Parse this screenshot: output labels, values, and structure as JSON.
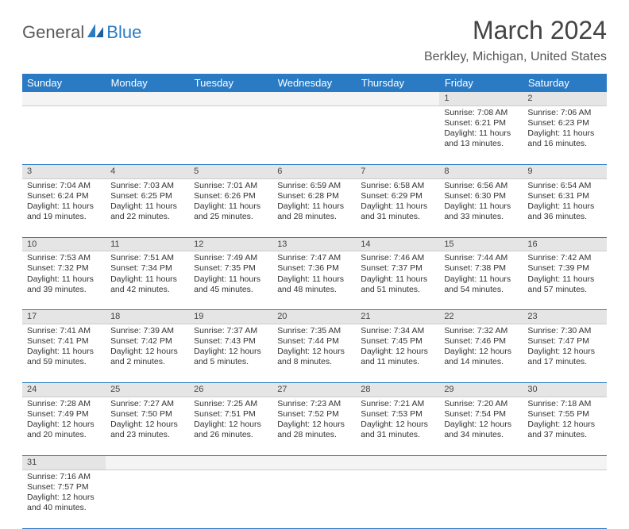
{
  "logo": {
    "part1": "General",
    "part2": "Blue"
  },
  "title": "March 2024",
  "location": "Berkley, Michigan, United States",
  "colors": {
    "header_bg": "#2a7bc4",
    "header_text": "#ffffff",
    "daynum_bg": "#e5e5e5",
    "border": "#2a7bc4",
    "page_bg": "#ffffff",
    "text": "#333333"
  },
  "day_headers": [
    "Sunday",
    "Monday",
    "Tuesday",
    "Wednesday",
    "Thursday",
    "Friday",
    "Saturday"
  ],
  "weeks": [
    [
      null,
      null,
      null,
      null,
      null,
      {
        "n": "1",
        "sr": "Sunrise: 7:08 AM",
        "ss": "Sunset: 6:21 PM",
        "d1": "Daylight: 11 hours",
        "d2": "and 13 minutes."
      },
      {
        "n": "2",
        "sr": "Sunrise: 7:06 AM",
        "ss": "Sunset: 6:23 PM",
        "d1": "Daylight: 11 hours",
        "d2": "and 16 minutes."
      }
    ],
    [
      {
        "n": "3",
        "sr": "Sunrise: 7:04 AM",
        "ss": "Sunset: 6:24 PM",
        "d1": "Daylight: 11 hours",
        "d2": "and 19 minutes."
      },
      {
        "n": "4",
        "sr": "Sunrise: 7:03 AM",
        "ss": "Sunset: 6:25 PM",
        "d1": "Daylight: 11 hours",
        "d2": "and 22 minutes."
      },
      {
        "n": "5",
        "sr": "Sunrise: 7:01 AM",
        "ss": "Sunset: 6:26 PM",
        "d1": "Daylight: 11 hours",
        "d2": "and 25 minutes."
      },
      {
        "n": "6",
        "sr": "Sunrise: 6:59 AM",
        "ss": "Sunset: 6:28 PM",
        "d1": "Daylight: 11 hours",
        "d2": "and 28 minutes."
      },
      {
        "n": "7",
        "sr": "Sunrise: 6:58 AM",
        "ss": "Sunset: 6:29 PM",
        "d1": "Daylight: 11 hours",
        "d2": "and 31 minutes."
      },
      {
        "n": "8",
        "sr": "Sunrise: 6:56 AM",
        "ss": "Sunset: 6:30 PM",
        "d1": "Daylight: 11 hours",
        "d2": "and 33 minutes."
      },
      {
        "n": "9",
        "sr": "Sunrise: 6:54 AM",
        "ss": "Sunset: 6:31 PM",
        "d1": "Daylight: 11 hours",
        "d2": "and 36 minutes."
      }
    ],
    [
      {
        "n": "10",
        "sr": "Sunrise: 7:53 AM",
        "ss": "Sunset: 7:32 PM",
        "d1": "Daylight: 11 hours",
        "d2": "and 39 minutes."
      },
      {
        "n": "11",
        "sr": "Sunrise: 7:51 AM",
        "ss": "Sunset: 7:34 PM",
        "d1": "Daylight: 11 hours",
        "d2": "and 42 minutes."
      },
      {
        "n": "12",
        "sr": "Sunrise: 7:49 AM",
        "ss": "Sunset: 7:35 PM",
        "d1": "Daylight: 11 hours",
        "d2": "and 45 minutes."
      },
      {
        "n": "13",
        "sr": "Sunrise: 7:47 AM",
        "ss": "Sunset: 7:36 PM",
        "d1": "Daylight: 11 hours",
        "d2": "and 48 minutes."
      },
      {
        "n": "14",
        "sr": "Sunrise: 7:46 AM",
        "ss": "Sunset: 7:37 PM",
        "d1": "Daylight: 11 hours",
        "d2": "and 51 minutes."
      },
      {
        "n": "15",
        "sr": "Sunrise: 7:44 AM",
        "ss": "Sunset: 7:38 PM",
        "d1": "Daylight: 11 hours",
        "d2": "and 54 minutes."
      },
      {
        "n": "16",
        "sr": "Sunrise: 7:42 AM",
        "ss": "Sunset: 7:39 PM",
        "d1": "Daylight: 11 hours",
        "d2": "and 57 minutes."
      }
    ],
    [
      {
        "n": "17",
        "sr": "Sunrise: 7:41 AM",
        "ss": "Sunset: 7:41 PM",
        "d1": "Daylight: 11 hours",
        "d2": "and 59 minutes."
      },
      {
        "n": "18",
        "sr": "Sunrise: 7:39 AM",
        "ss": "Sunset: 7:42 PM",
        "d1": "Daylight: 12 hours",
        "d2": "and 2 minutes."
      },
      {
        "n": "19",
        "sr": "Sunrise: 7:37 AM",
        "ss": "Sunset: 7:43 PM",
        "d1": "Daylight: 12 hours",
        "d2": "and 5 minutes."
      },
      {
        "n": "20",
        "sr": "Sunrise: 7:35 AM",
        "ss": "Sunset: 7:44 PM",
        "d1": "Daylight: 12 hours",
        "d2": "and 8 minutes."
      },
      {
        "n": "21",
        "sr": "Sunrise: 7:34 AM",
        "ss": "Sunset: 7:45 PM",
        "d1": "Daylight: 12 hours",
        "d2": "and 11 minutes."
      },
      {
        "n": "22",
        "sr": "Sunrise: 7:32 AM",
        "ss": "Sunset: 7:46 PM",
        "d1": "Daylight: 12 hours",
        "d2": "and 14 minutes."
      },
      {
        "n": "23",
        "sr": "Sunrise: 7:30 AM",
        "ss": "Sunset: 7:47 PM",
        "d1": "Daylight: 12 hours",
        "d2": "and 17 minutes."
      }
    ],
    [
      {
        "n": "24",
        "sr": "Sunrise: 7:28 AM",
        "ss": "Sunset: 7:49 PM",
        "d1": "Daylight: 12 hours",
        "d2": "and 20 minutes."
      },
      {
        "n": "25",
        "sr": "Sunrise: 7:27 AM",
        "ss": "Sunset: 7:50 PM",
        "d1": "Daylight: 12 hours",
        "d2": "and 23 minutes."
      },
      {
        "n": "26",
        "sr": "Sunrise: 7:25 AM",
        "ss": "Sunset: 7:51 PM",
        "d1": "Daylight: 12 hours",
        "d2": "and 26 minutes."
      },
      {
        "n": "27",
        "sr": "Sunrise: 7:23 AM",
        "ss": "Sunset: 7:52 PM",
        "d1": "Daylight: 12 hours",
        "d2": "and 28 minutes."
      },
      {
        "n": "28",
        "sr": "Sunrise: 7:21 AM",
        "ss": "Sunset: 7:53 PM",
        "d1": "Daylight: 12 hours",
        "d2": "and 31 minutes."
      },
      {
        "n": "29",
        "sr": "Sunrise: 7:20 AM",
        "ss": "Sunset: 7:54 PM",
        "d1": "Daylight: 12 hours",
        "d2": "and 34 minutes."
      },
      {
        "n": "30",
        "sr": "Sunrise: 7:18 AM",
        "ss": "Sunset: 7:55 PM",
        "d1": "Daylight: 12 hours",
        "d2": "and 37 minutes."
      }
    ],
    [
      {
        "n": "31",
        "sr": "Sunrise: 7:16 AM",
        "ss": "Sunset: 7:57 PM",
        "d1": "Daylight: 12 hours",
        "d2": "and 40 minutes."
      },
      null,
      null,
      null,
      null,
      null,
      null
    ]
  ]
}
